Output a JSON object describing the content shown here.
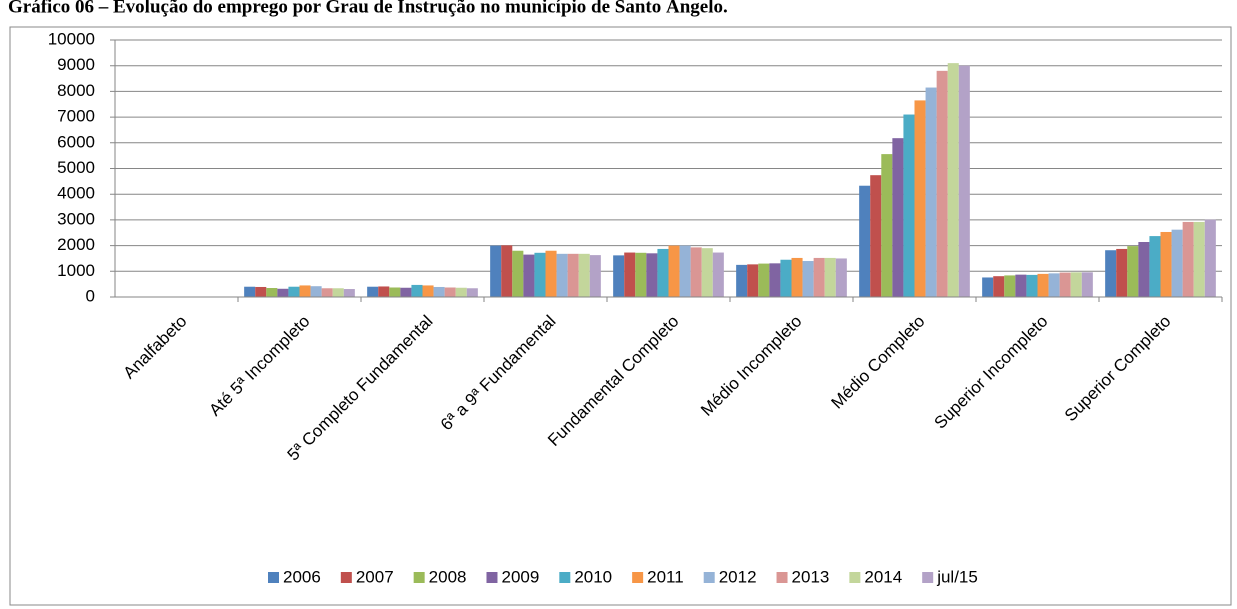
{
  "chart_data": {
    "type": "bar",
    "title": "Gráfico 06 – Evolução do emprego por Grau de Instrução no município de Santo Ângelo.",
    "categories": [
      "Analfabeto",
      "Até 5ª Incompleto",
      "5ª Completo Fundamental",
      "6ª a 9ª Fundamental",
      "Fundamental Completo",
      "Médio Incompleto",
      "Médio Completo",
      "Superior Incompleto",
      "Superior Completo"
    ],
    "series": [
      {
        "name": "2006",
        "color": "#4f81bd",
        "values": [
          10,
          400,
          400,
          2000,
          1620,
          1250,
          4330,
          760,
          1820
        ]
      },
      {
        "name": "2007",
        "color": "#c0504d",
        "values": [
          10,
          390,
          410,
          2010,
          1730,
          1270,
          4740,
          810,
          1870
        ]
      },
      {
        "name": "2008",
        "color": "#9bbb59",
        "values": [
          10,
          350,
          370,
          1800,
          1720,
          1300,
          5560,
          840,
          1980
        ]
      },
      {
        "name": "2009",
        "color": "#8064a2",
        "values": [
          10,
          320,
          360,
          1650,
          1700,
          1310,
          6180,
          870,
          2140
        ]
      },
      {
        "name": "2010",
        "color": "#4bacc6",
        "values": [
          10,
          400,
          470,
          1720,
          1870,
          1450,
          7100,
          860,
          2370
        ]
      },
      {
        "name": "2011",
        "color": "#f79646",
        "values": [
          10,
          450,
          450,
          1800,
          2000,
          1520,
          7650,
          900,
          2530
        ]
      },
      {
        "name": "2012",
        "color": "#95b3d7",
        "values": [
          10,
          420,
          390,
          1680,
          2000,
          1400,
          8150,
          920,
          2620
        ]
      },
      {
        "name": "2013",
        "color": "#da9694",
        "values": [
          10,
          340,
          370,
          1680,
          1930,
          1520,
          8800,
          950,
          2920
        ]
      },
      {
        "name": "2014",
        "color": "#c3d69b",
        "values": [
          10,
          340,
          360,
          1680,
          1900,
          1520,
          9100,
          960,
          2920
        ]
      },
      {
        "name": "jul/15",
        "color": "#b3a2c7",
        "values": [
          10,
          310,
          340,
          1630,
          1730,
          1500,
          9000,
          960,
          3010
        ]
      }
    ],
    "ylim": [
      0,
      10000
    ],
    "yticks": [
      0,
      1000,
      2000,
      3000,
      4000,
      5000,
      6000,
      7000,
      8000,
      9000,
      10000
    ],
    "grid": true
  }
}
